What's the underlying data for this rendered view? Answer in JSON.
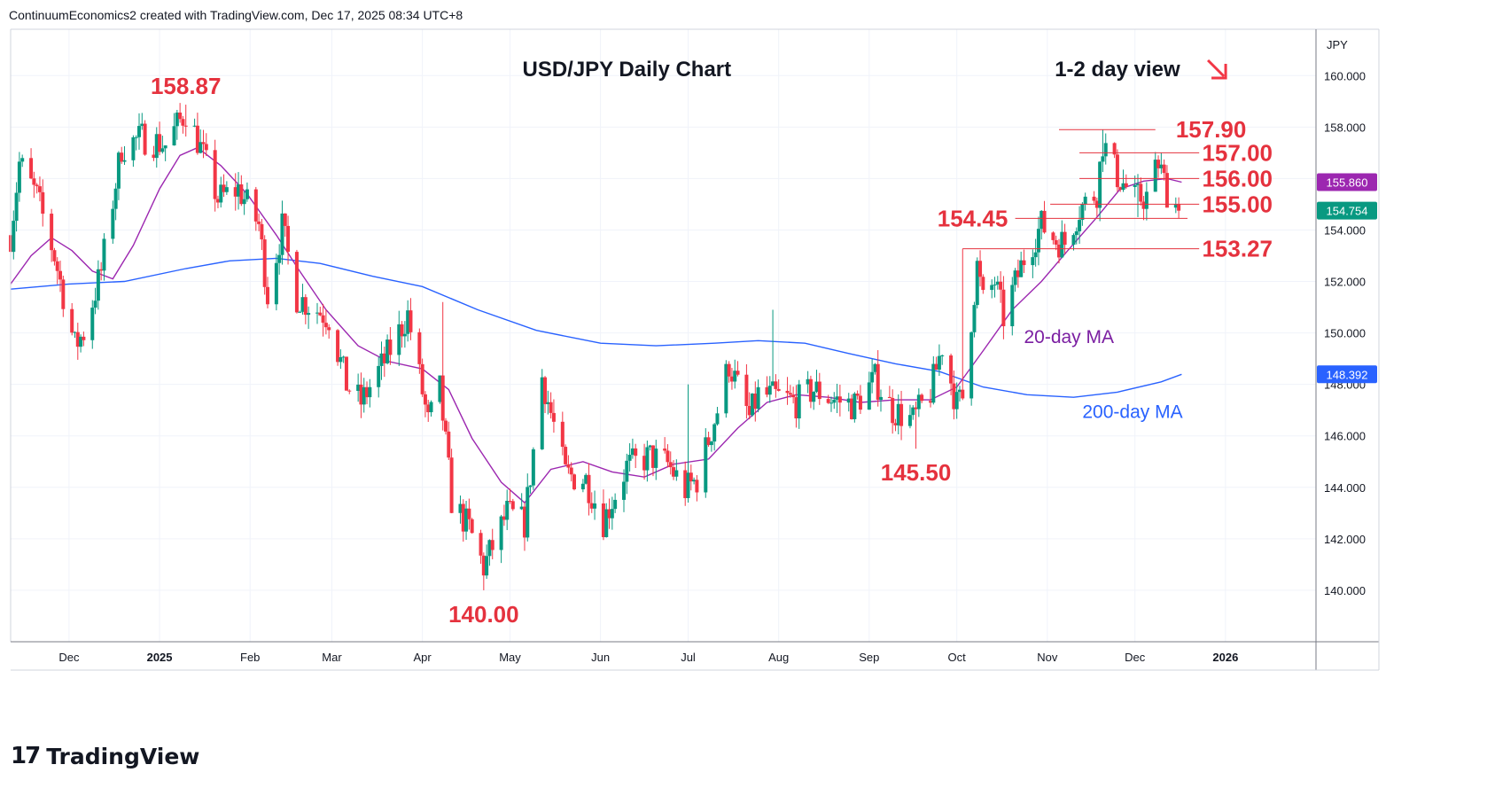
{
  "header": {
    "text": "ContinuumEconomics2 created with TradingView.com, Dec 17, 2025 08:34 UTC+8"
  },
  "footer": {
    "logo_text": "TradingView"
  },
  "chart_data": {
    "type": "candlestick",
    "title": "USD/JPY Daily Chart",
    "subtitle": "1-2 day view",
    "subtitle_arrow": "down-right-arrow",
    "currency": "JPY",
    "ylim": [
      138,
      161.8
    ],
    "y_ticks": [
      "140.000",
      "142.000",
      "144.000",
      "146.000",
      "148.000",
      "150.000",
      "152.000",
      "154.000",
      "156.000",
      "158.000",
      "160.000"
    ],
    "x_ticks": [
      {
        "label": "Dec",
        "date": "2024-12-01"
      },
      {
        "label": "2025",
        "date": "2025-01-01",
        "bold": true
      },
      {
        "label": "Feb",
        "date": "2025-02-01"
      },
      {
        "label": "Mar",
        "date": "2025-03-01"
      },
      {
        "label": "Apr",
        "date": "2025-04-01"
      },
      {
        "label": "May",
        "date": "2025-05-01"
      },
      {
        "label": "Jun",
        "date": "2025-06-01"
      },
      {
        "label": "Jul",
        "date": "2025-07-01"
      },
      {
        "label": "Aug",
        "date": "2025-08-01"
      },
      {
        "label": "Sep",
        "date": "2025-09-01"
      },
      {
        "label": "Oct",
        "date": "2025-10-01"
      },
      {
        "label": "Nov",
        "date": "2025-11-01"
      },
      {
        "label": "Dec",
        "date": "2025-12-01"
      },
      {
        "label": "2026",
        "date": "2026-01-01",
        "bold": true
      }
    ],
    "x_range": [
      "2024-11-11",
      "2026-02-01"
    ],
    "price_tags": [
      {
        "label": "155.860",
        "value": 155.86,
        "color": "#9c27b0"
      },
      {
        "label": "148.392",
        "value": 148.392,
        "color": "#2962ff"
      },
      {
        "label": "154.754",
        "value": 154.754,
        "color": "#089981"
      }
    ],
    "levels": [
      {
        "label": "157.90",
        "value": 157.9,
        "from": "2025-11-05",
        "to": "2025-12-08",
        "text_date": "2025-12-15"
      },
      {
        "label": "157.00",
        "value": 157.0,
        "from": "2025-11-12",
        "to": "2025-12-23",
        "text_date": "2025-12-24"
      },
      {
        "label": "156.00",
        "value": 156.0,
        "from": "2025-11-12",
        "to": "2025-12-23",
        "text_date": "2025-12-24"
      },
      {
        "label": "155.00",
        "value": 155.0,
        "from": "2025-11-02",
        "to": "2025-12-23",
        "text_date": "2025-12-24"
      },
      {
        "label": "154.45",
        "value": 154.45,
        "from": "2025-10-21",
        "to": "2025-12-19",
        "text_date": "2025-10-20"
      },
      {
        "label": "153.27",
        "value": 153.27,
        "from": "2025-10-03",
        "to": "2025-12-23",
        "text_date": "2025-12-24"
      }
    ],
    "annotations": [
      {
        "label": "158.87",
        "value": 158.87,
        "date": "2025-01-10"
      },
      {
        "label": "140.00",
        "value": 140.0,
        "date": "2025-04-22"
      },
      {
        "label": "145.50",
        "value": 145.5,
        "date": "2025-09-17"
      }
    ],
    "ma_labels": [
      {
        "label": "20-day MA",
        "color": "#7b1fa2",
        "date": "2025-10-24",
        "value": 149.6
      },
      {
        "label": "200-day MA",
        "color": "#2962ff",
        "date": "2025-11-13",
        "value": 146.7
      }
    ],
    "colors": {
      "up": "#089981",
      "down": "#f23645",
      "ma20": "#9c27b0",
      "ma200": "#2962ff",
      "levels": "#e5323e"
    },
    "ma20": [
      [
        "2024-11-11",
        151.9
      ],
      [
        "2024-11-18",
        153.0
      ],
      [
        "2024-11-25",
        153.7
      ],
      [
        "2024-12-02",
        153.2
      ],
      [
        "2024-12-09",
        152.4
      ],
      [
        "2024-12-16",
        152.1
      ],
      [
        "2024-12-23",
        153.4
      ],
      [
        "2025-01-01",
        155.6
      ],
      [
        "2025-01-08",
        156.9
      ],
      [
        "2025-01-14",
        157.2
      ],
      [
        "2025-01-22",
        156.5
      ],
      [
        "2025-01-31",
        155.4
      ],
      [
        "2025-02-10",
        153.8
      ],
      [
        "2025-02-18",
        152.4
      ],
      [
        "2025-02-27",
        150.9
      ],
      [
        "2025-03-10",
        149.5
      ],
      [
        "2025-03-20",
        148.9
      ],
      [
        "2025-04-01",
        148.6
      ],
      [
        "2025-04-10",
        147.8
      ],
      [
        "2025-04-18",
        145.9
      ],
      [
        "2025-04-28",
        144.2
      ],
      [
        "2025-05-06",
        143.4
      ],
      [
        "2025-05-15",
        144.7
      ],
      [
        "2025-05-26",
        145.0
      ],
      [
        "2025-06-05",
        144.6
      ],
      [
        "2025-06-16",
        144.4
      ],
      [
        "2025-06-26",
        144.9
      ],
      [
        "2025-07-08",
        145.1
      ],
      [
        "2025-07-18",
        146.3
      ],
      [
        "2025-07-28",
        147.3
      ],
      [
        "2025-08-07",
        147.6
      ],
      [
        "2025-08-18",
        147.5
      ],
      [
        "2025-08-29",
        147.3
      ],
      [
        "2025-09-10",
        147.4
      ],
      [
        "2025-09-22",
        147.4
      ],
      [
        "2025-10-01",
        147.9
      ],
      [
        "2025-10-10",
        149.3
      ],
      [
        "2025-10-20",
        150.9
      ],
      [
        "2025-10-30",
        152.0
      ],
      [
        "2025-11-08",
        153.2
      ],
      [
        "2025-11-18",
        154.5
      ],
      [
        "2025-11-26",
        155.6
      ],
      [
        "2025-12-04",
        155.9
      ],
      [
        "2025-12-12",
        156.0
      ],
      [
        "2025-12-17",
        155.86
      ]
    ],
    "ma200": [
      [
        "2024-11-11",
        151.7
      ],
      [
        "2024-12-01",
        151.9
      ],
      [
        "2024-12-20",
        152.0
      ],
      [
        "2025-01-10",
        152.5
      ],
      [
        "2025-01-25",
        152.8
      ],
      [
        "2025-02-10",
        152.9
      ],
      [
        "2025-02-25",
        152.7
      ],
      [
        "2025-03-15",
        152.2
      ],
      [
        "2025-04-01",
        151.8
      ],
      [
        "2025-04-20",
        150.9
      ],
      [
        "2025-05-10",
        150.1
      ],
      [
        "2025-06-01",
        149.6
      ],
      [
        "2025-06-20",
        149.5
      ],
      [
        "2025-07-10",
        149.6
      ],
      [
        "2025-07-25",
        149.7
      ],
      [
        "2025-08-10",
        149.6
      ],
      [
        "2025-08-25",
        149.2
      ],
      [
        "2025-09-10",
        148.8
      ],
      [
        "2025-09-25",
        148.5
      ],
      [
        "2025-10-10",
        147.9
      ],
      [
        "2025-10-25",
        147.6
      ],
      [
        "2025-11-10",
        147.5
      ],
      [
        "2025-11-25",
        147.7
      ],
      [
        "2025-12-10",
        148.1
      ],
      [
        "2025-12-17",
        148.392
      ]
    ],
    "anchors": [
      [
        "2024-11-11",
        153.8
      ],
      [
        "2024-11-14",
        156.6
      ],
      [
        "2024-11-20",
        155.3
      ],
      [
        "2024-11-26",
        153.0
      ],
      [
        "2024-12-03",
        149.5
      ],
      [
        "2024-12-06",
        150.0
      ],
      [
        "2024-12-12",
        152.4
      ],
      [
        "2024-12-19",
        157.2
      ],
      [
        "2024-12-26",
        157.6
      ],
      [
        "2025-01-03",
        157.3
      ],
      [
        "2025-01-10",
        158.6
      ],
      [
        "2025-01-14",
        157.5
      ],
      [
        "2025-01-21",
        155.2
      ],
      [
        "2025-01-28",
        155.6
      ],
      [
        "2025-02-04",
        154.2
      ],
      [
        "2025-02-07",
        151.5
      ],
      [
        "2025-02-12",
        154.1
      ],
      [
        "2025-02-17",
        151.4
      ],
      [
        "2025-02-28",
        150.6
      ],
      [
        "2025-03-06",
        148.0
      ],
      [
        "2025-03-11",
        147.3
      ],
      [
        "2025-03-19",
        148.9
      ],
      [
        "2025-03-27",
        150.7
      ],
      [
        "2025-04-03",
        146.5
      ],
      [
        "2025-04-07",
        147.8
      ],
      [
        "2025-04-11",
        143.5
      ],
      [
        "2025-04-17",
        142.4
      ],
      [
        "2025-04-22",
        140.9
      ],
      [
        "2025-04-30",
        143.0
      ],
      [
        "2025-05-06",
        142.6
      ],
      [
        "2025-05-09",
        145.4
      ],
      [
        "2025-05-12",
        148.3
      ],
      [
        "2025-05-20",
        144.5
      ],
      [
        "2025-05-27",
        144.3
      ],
      [
        "2025-06-02",
        142.7
      ],
      [
        "2025-06-10",
        144.8
      ],
      [
        "2025-06-18",
        145.2
      ],
      [
        "2025-06-24",
        144.9
      ],
      [
        "2025-06-30",
        143.9
      ],
      [
        "2025-07-04",
        144.3
      ],
      [
        "2025-07-11",
        147.0
      ],
      [
        "2025-07-15",
        148.8
      ],
      [
        "2025-07-22",
        146.7
      ],
      [
        "2025-07-25",
        147.6
      ],
      [
        "2025-08-01",
        147.5
      ],
      [
        "2025-08-07",
        147.3
      ],
      [
        "2025-08-13",
        147.8
      ],
      [
        "2025-08-20",
        147.4
      ],
      [
        "2025-08-27",
        147.2
      ],
      [
        "2025-09-03",
        148.2
      ],
      [
        "2025-09-09",
        147.0
      ],
      [
        "2025-09-16",
        146.6
      ],
      [
        "2025-09-22",
        147.7
      ],
      [
        "2025-09-26",
        149.5
      ],
      [
        "2025-10-01",
        147.2
      ],
      [
        "2025-10-03",
        147.5
      ],
      [
        "2025-10-08",
        152.6
      ],
      [
        "2025-10-10",
        151.2
      ],
      [
        "2025-10-14",
        152.0
      ],
      [
        "2025-10-17",
        150.6
      ],
      [
        "2025-10-24",
        152.9
      ],
      [
        "2025-10-30",
        154.2
      ],
      [
        "2025-11-04",
        153.6
      ],
      [
        "2025-11-07",
        153.5
      ],
      [
        "2025-11-12",
        154.8
      ],
      [
        "2025-11-18",
        155.5
      ],
      [
        "2025-11-20",
        157.4
      ],
      [
        "2025-11-25",
        156.1
      ],
      [
        "2025-12-01",
        155.2
      ],
      [
        "2025-12-05",
        155.3
      ],
      [
        "2025-12-09",
        156.6
      ],
      [
        "2025-12-12",
        155.5
      ],
      [
        "2025-12-16",
        154.8
      ]
    ],
    "spikes": [
      [
        "2025-01-10",
        158.87,
        "high"
      ],
      [
        "2025-04-22",
        140.0,
        "low"
      ],
      [
        "2025-09-17",
        145.5,
        "low"
      ],
      [
        "2025-11-20",
        157.9,
        "high"
      ],
      [
        "2025-07-30",
        150.9,
        "high"
      ],
      [
        "2025-05-12",
        148.6,
        "high"
      ],
      [
        "2025-04-08",
        151.2,
        "high"
      ],
      [
        "2025-10-03",
        153.27,
        "high"
      ],
      [
        "2025-12-09",
        156.9,
        "high"
      ],
      [
        "2025-12-02",
        154.5,
        "low"
      ],
      [
        "2025-07-01",
        148.0,
        "high"
      ],
      [
        "2025-12-16",
        154.45,
        "low"
      ]
    ]
  }
}
